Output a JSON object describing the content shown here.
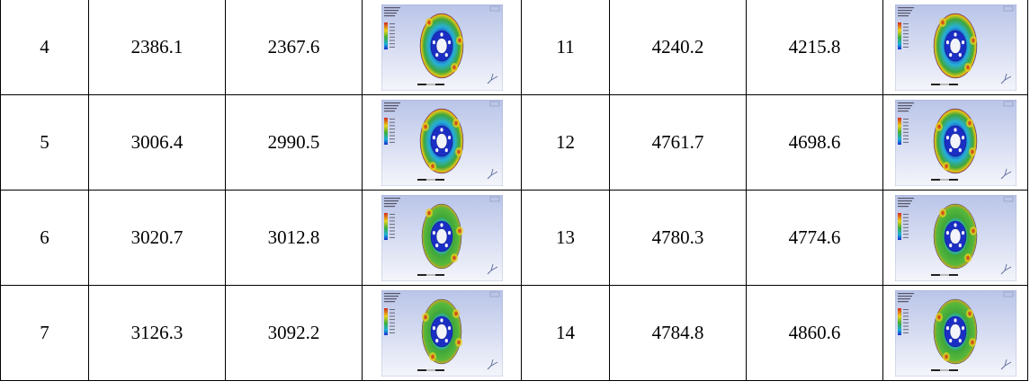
{
  "rows": [
    {
      "left": {
        "mode": "4",
        "v1": "2386.1",
        "v2": "2367.6"
      },
      "right": {
        "mode": "11",
        "v1": "4240.2",
        "v2": "4215.8"
      }
    },
    {
      "left": {
        "mode": "5",
        "v1": "3006.4",
        "v2": "2990.5"
      },
      "right": {
        "mode": "12",
        "v1": "4761.7",
        "v2": "4698.6"
      }
    },
    {
      "left": {
        "mode": "6",
        "v1": "3020.7",
        "v2": "3012.8"
      },
      "right": {
        "mode": "13",
        "v1": "4780.3",
        "v2": "4774.6"
      }
    },
    {
      "left": {
        "mode": "7",
        "v1": "3126.3",
        "v2": "3092.2"
      },
      "right": {
        "mode": "14",
        "v1": "4784.8",
        "v2": "4860.6"
      }
    }
  ],
  "colors": {
    "background_top": "#c9d2ec",
    "background_bottom": "#f6f7fc",
    "disc_blue": "#1a2fd0",
    "disc_green": "#3fa63a",
    "disc_yellow": "#e0d21a",
    "disc_red": "#d43a1e"
  }
}
